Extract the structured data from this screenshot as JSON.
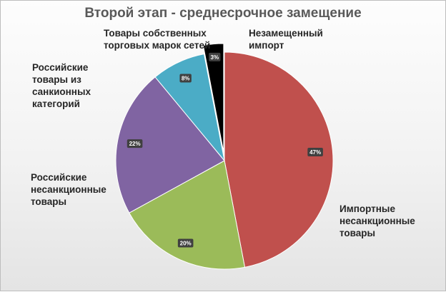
{
  "title": "Второй этап - среднесрочное замещение",
  "chart_data": {
    "type": "pie",
    "title": "Второй этап - среднесрочное замещение",
    "slices": [
      {
        "label": "Импортные\nнесанкционные\nтовары",
        "value": 47,
        "value_label": "47%",
        "color": "#c0504d"
      },
      {
        "label": "Российские\nнесанкционные\nтовары",
        "value": 20,
        "value_label": "20%",
        "color": "#9bbb59"
      },
      {
        "label": "Российские\nтовары из\nсанкионных\nкатегорий",
        "value": 22,
        "value_label": "22%",
        "color": "#8064a2"
      },
      {
        "label": "Товары собственных\nторговых марок сетей",
        "value": 8,
        "value_label": "8%",
        "color": "#4bacc6"
      },
      {
        "label": "Незамещенный\nимпорт",
        "value": 3,
        "value_label": "3%",
        "color": "#000000",
        "exploded": true
      }
    ],
    "legend": "none",
    "data_labels": "inside"
  }
}
